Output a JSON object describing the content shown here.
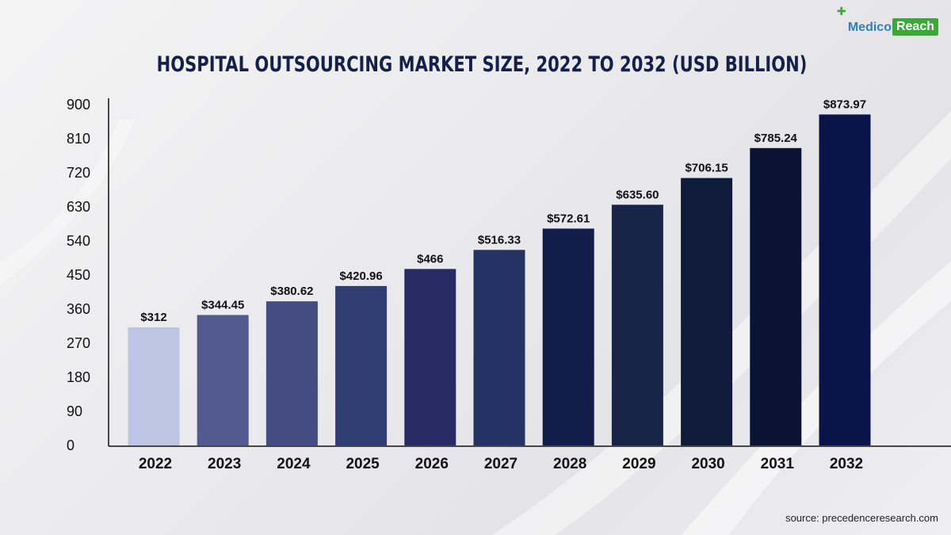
{
  "logo": {
    "part1": "Medico",
    "part2": "Reach"
  },
  "source": "source: precedenceresearch.com",
  "chart_data": {
    "type": "bar",
    "title": "HOSPITAL OUTSOURCING MARKET SIZE, 2022 TO 2032 (USD BILLION)",
    "xlabel": "",
    "ylabel": "",
    "categories": [
      "2022",
      "2023",
      "2024",
      "2025",
      "2026",
      "2027",
      "2028",
      "2029",
      "2030",
      "2031",
      "2032"
    ],
    "values": [
      312,
      344.45,
      380.62,
      420.96,
      466,
      516.33,
      572.61,
      635.6,
      706.15,
      785.24,
      873.97
    ],
    "data_labels": [
      "$312",
      "$344.45",
      "$380.62",
      "$420.96",
      "$466",
      "$516.33",
      "$572.61",
      "$635.60",
      "$706.15",
      "$785.24",
      "$873.97"
    ],
    "yticks": [
      0,
      90,
      180,
      270,
      360,
      450,
      540,
      630,
      720,
      810,
      900
    ],
    "ylim": [
      0,
      900
    ],
    "grid": false,
    "legend": "none",
    "bar_colors": [
      "#bcc5e3",
      "#535a8e",
      "#444c82",
      "#2e3e72",
      "#272b64",
      "#233363",
      "#131d4c",
      "#182549",
      "#101a3a",
      "#0b1334",
      "#0b1448"
    ]
  }
}
